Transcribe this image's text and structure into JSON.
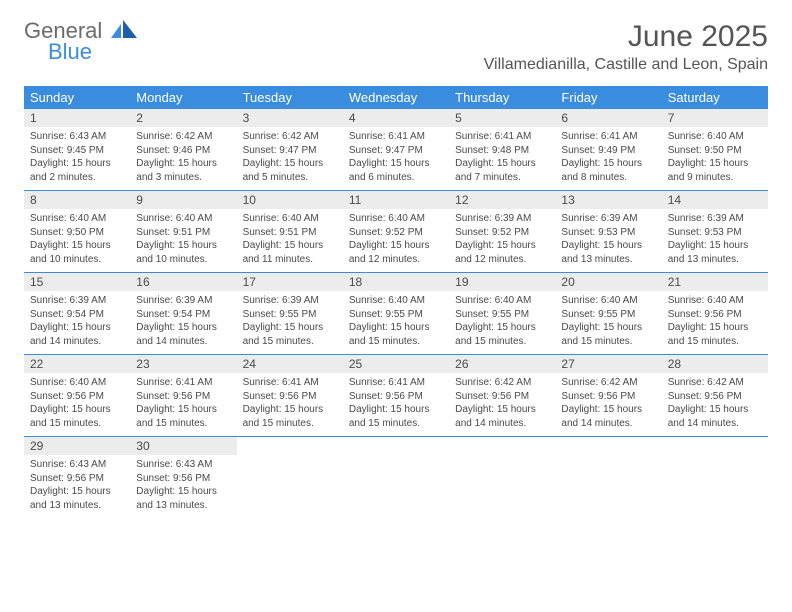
{
  "logo": {
    "text1": "General",
    "text2": "Blue",
    "color_gray": "#6b6b6b",
    "color_blue": "#3a8dde"
  },
  "header": {
    "title": "June 2025",
    "location": "Villamedianilla, Castille and Leon, Spain"
  },
  "colors": {
    "header_bg": "#3a8dde",
    "header_text": "#ffffff",
    "daynum_bg": "#ececec",
    "rule": "#3a8dde",
    "body_text": "#4a4a4a"
  },
  "dow": [
    "Sunday",
    "Monday",
    "Tuesday",
    "Wednesday",
    "Thursday",
    "Friday",
    "Saturday"
  ],
  "weeks": [
    [
      {
        "n": "1",
        "sr": "Sunrise: 6:43 AM",
        "ss": "Sunset: 9:45 PM",
        "dl": "Daylight: 15 hours and 2 minutes."
      },
      {
        "n": "2",
        "sr": "Sunrise: 6:42 AM",
        "ss": "Sunset: 9:46 PM",
        "dl": "Daylight: 15 hours and 3 minutes."
      },
      {
        "n": "3",
        "sr": "Sunrise: 6:42 AM",
        "ss": "Sunset: 9:47 PM",
        "dl": "Daylight: 15 hours and 5 minutes."
      },
      {
        "n": "4",
        "sr": "Sunrise: 6:41 AM",
        "ss": "Sunset: 9:47 PM",
        "dl": "Daylight: 15 hours and 6 minutes."
      },
      {
        "n": "5",
        "sr": "Sunrise: 6:41 AM",
        "ss": "Sunset: 9:48 PM",
        "dl": "Daylight: 15 hours and 7 minutes."
      },
      {
        "n": "6",
        "sr": "Sunrise: 6:41 AM",
        "ss": "Sunset: 9:49 PM",
        "dl": "Daylight: 15 hours and 8 minutes."
      },
      {
        "n": "7",
        "sr": "Sunrise: 6:40 AM",
        "ss": "Sunset: 9:50 PM",
        "dl": "Daylight: 15 hours and 9 minutes."
      }
    ],
    [
      {
        "n": "8",
        "sr": "Sunrise: 6:40 AM",
        "ss": "Sunset: 9:50 PM",
        "dl": "Daylight: 15 hours and 10 minutes."
      },
      {
        "n": "9",
        "sr": "Sunrise: 6:40 AM",
        "ss": "Sunset: 9:51 PM",
        "dl": "Daylight: 15 hours and 10 minutes."
      },
      {
        "n": "10",
        "sr": "Sunrise: 6:40 AM",
        "ss": "Sunset: 9:51 PM",
        "dl": "Daylight: 15 hours and 11 minutes."
      },
      {
        "n": "11",
        "sr": "Sunrise: 6:40 AM",
        "ss": "Sunset: 9:52 PM",
        "dl": "Daylight: 15 hours and 12 minutes."
      },
      {
        "n": "12",
        "sr": "Sunrise: 6:39 AM",
        "ss": "Sunset: 9:52 PM",
        "dl": "Daylight: 15 hours and 12 minutes."
      },
      {
        "n": "13",
        "sr": "Sunrise: 6:39 AM",
        "ss": "Sunset: 9:53 PM",
        "dl": "Daylight: 15 hours and 13 minutes."
      },
      {
        "n": "14",
        "sr": "Sunrise: 6:39 AM",
        "ss": "Sunset: 9:53 PM",
        "dl": "Daylight: 15 hours and 13 minutes."
      }
    ],
    [
      {
        "n": "15",
        "sr": "Sunrise: 6:39 AM",
        "ss": "Sunset: 9:54 PM",
        "dl": "Daylight: 15 hours and 14 minutes."
      },
      {
        "n": "16",
        "sr": "Sunrise: 6:39 AM",
        "ss": "Sunset: 9:54 PM",
        "dl": "Daylight: 15 hours and 14 minutes."
      },
      {
        "n": "17",
        "sr": "Sunrise: 6:39 AM",
        "ss": "Sunset: 9:55 PM",
        "dl": "Daylight: 15 hours and 15 minutes."
      },
      {
        "n": "18",
        "sr": "Sunrise: 6:40 AM",
        "ss": "Sunset: 9:55 PM",
        "dl": "Daylight: 15 hours and 15 minutes."
      },
      {
        "n": "19",
        "sr": "Sunrise: 6:40 AM",
        "ss": "Sunset: 9:55 PM",
        "dl": "Daylight: 15 hours and 15 minutes."
      },
      {
        "n": "20",
        "sr": "Sunrise: 6:40 AM",
        "ss": "Sunset: 9:55 PM",
        "dl": "Daylight: 15 hours and 15 minutes."
      },
      {
        "n": "21",
        "sr": "Sunrise: 6:40 AM",
        "ss": "Sunset: 9:56 PM",
        "dl": "Daylight: 15 hours and 15 minutes."
      }
    ],
    [
      {
        "n": "22",
        "sr": "Sunrise: 6:40 AM",
        "ss": "Sunset: 9:56 PM",
        "dl": "Daylight: 15 hours and 15 minutes."
      },
      {
        "n": "23",
        "sr": "Sunrise: 6:41 AM",
        "ss": "Sunset: 9:56 PM",
        "dl": "Daylight: 15 hours and 15 minutes."
      },
      {
        "n": "24",
        "sr": "Sunrise: 6:41 AM",
        "ss": "Sunset: 9:56 PM",
        "dl": "Daylight: 15 hours and 15 minutes."
      },
      {
        "n": "25",
        "sr": "Sunrise: 6:41 AM",
        "ss": "Sunset: 9:56 PM",
        "dl": "Daylight: 15 hours and 15 minutes."
      },
      {
        "n": "26",
        "sr": "Sunrise: 6:42 AM",
        "ss": "Sunset: 9:56 PM",
        "dl": "Daylight: 15 hours and 14 minutes."
      },
      {
        "n": "27",
        "sr": "Sunrise: 6:42 AM",
        "ss": "Sunset: 9:56 PM",
        "dl": "Daylight: 15 hours and 14 minutes."
      },
      {
        "n": "28",
        "sr": "Sunrise: 6:42 AM",
        "ss": "Sunset: 9:56 PM",
        "dl": "Daylight: 15 hours and 14 minutes."
      }
    ],
    [
      {
        "n": "29",
        "sr": "Sunrise: 6:43 AM",
        "ss": "Sunset: 9:56 PM",
        "dl": "Daylight: 15 hours and 13 minutes."
      },
      {
        "n": "30",
        "sr": "Sunrise: 6:43 AM",
        "ss": "Sunset: 9:56 PM",
        "dl": "Daylight: 15 hours and 13 minutes."
      },
      {
        "n": "",
        "sr": "",
        "ss": "",
        "dl": ""
      },
      {
        "n": "",
        "sr": "",
        "ss": "",
        "dl": ""
      },
      {
        "n": "",
        "sr": "",
        "ss": "",
        "dl": ""
      },
      {
        "n": "",
        "sr": "",
        "ss": "",
        "dl": ""
      },
      {
        "n": "",
        "sr": "",
        "ss": "",
        "dl": ""
      }
    ]
  ]
}
